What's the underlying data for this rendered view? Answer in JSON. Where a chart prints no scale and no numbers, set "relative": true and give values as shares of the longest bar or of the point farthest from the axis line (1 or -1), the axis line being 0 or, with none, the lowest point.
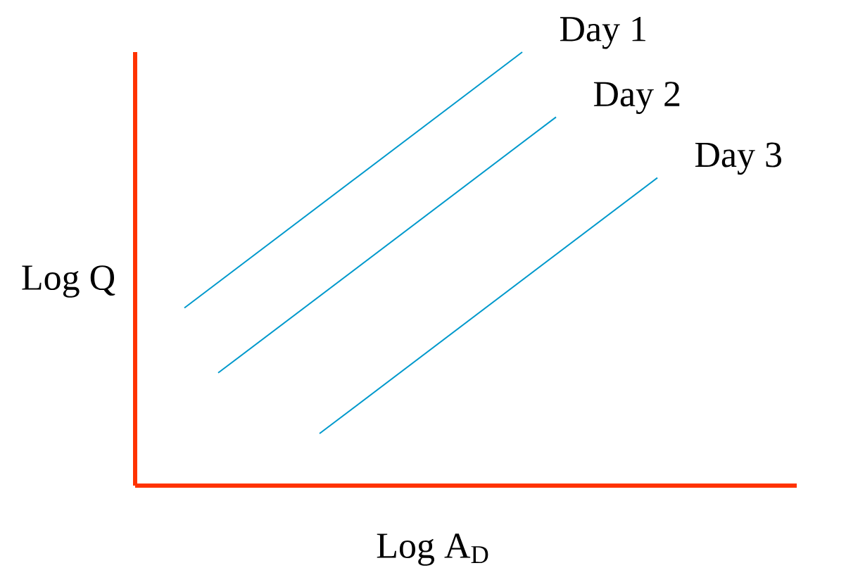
{
  "chart_data": {
    "type": "line",
    "relative": true,
    "xlabel": "Log A$_{D}$",
    "ylabel": "Log Q",
    "categories": [
      null,
      null,
      null,
      null,
      null,
      null,
      null,
      null,
      null,
      null,
      null,
      null,
      null,
      null,
      null
    ],
    "series": [
      {
        "name": "Day 1",
        "color": "#0099cc",
        "values": [
          0.41,
          null,
          null,
          null,
          null,
          null,
          null,
          null,
          null,
          null,
          1.0,
          null,
          null,
          null,
          null
        ]
      },
      {
        "name": "Day 2",
        "color": "#0099cc",
        "values": [
          null,
          0.26,
          null,
          null,
          null,
          null,
          null,
          null,
          null,
          null,
          null,
          0.85,
          null,
          null,
          null
        ]
      },
      {
        "name": "Day 3",
        "color": "#0099cc",
        "values": [
          null,
          null,
          null,
          null,
          0.12,
          null,
          null,
          null,
          null,
          null,
          null,
          null,
          null,
          null,
          0.71
        ]
      }
    ]
  }
}
